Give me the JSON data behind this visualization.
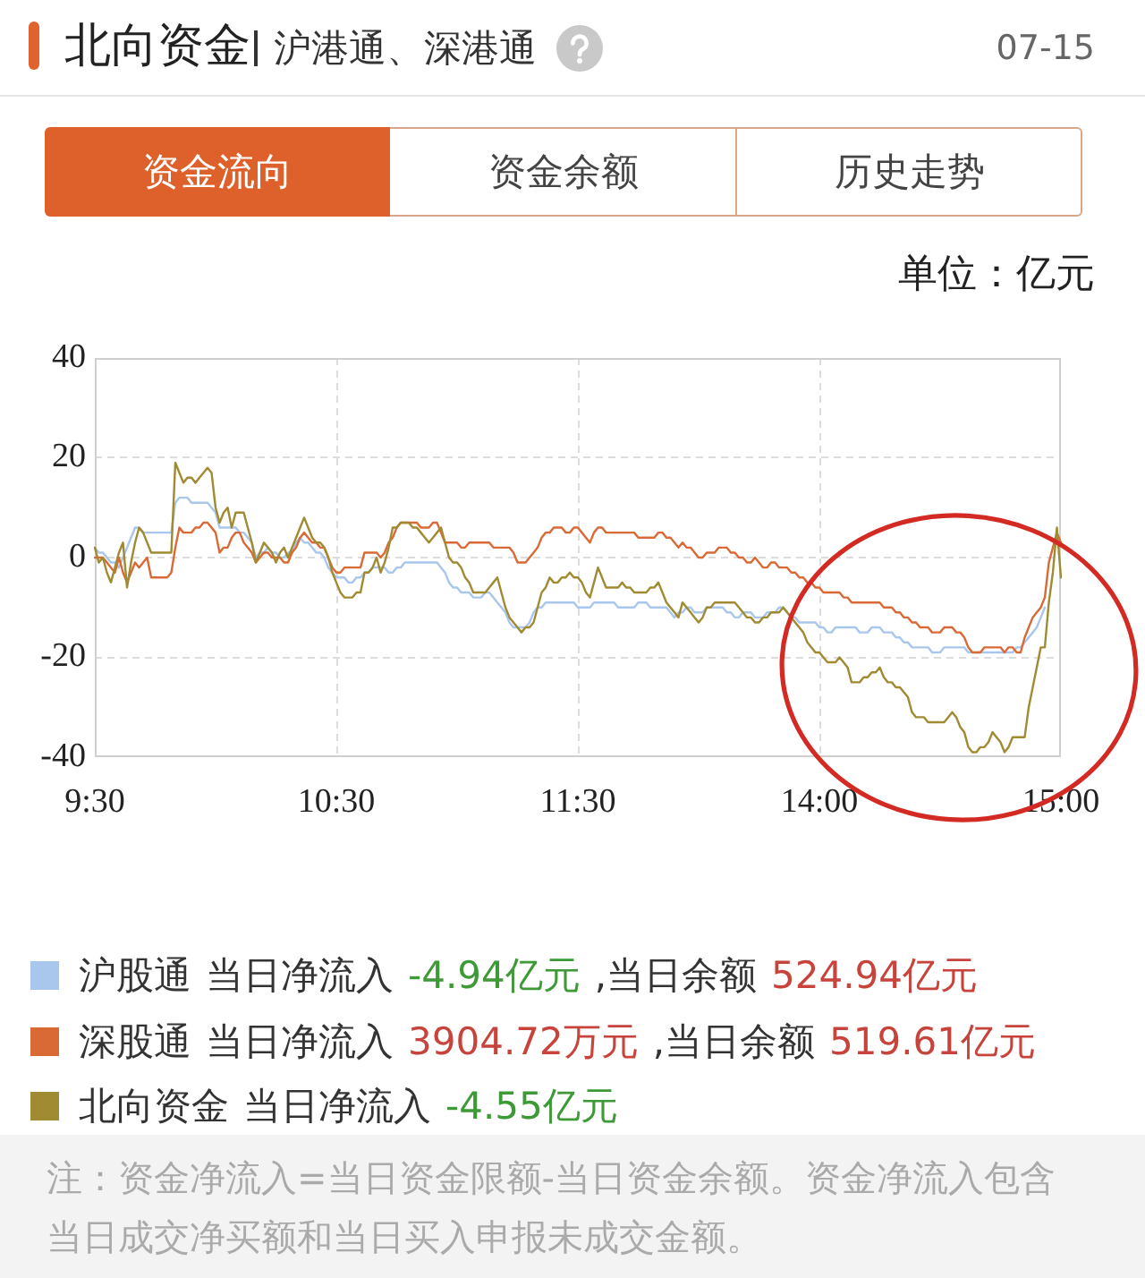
{
  "chart_data": {
    "type": "line",
    "title": "北向资金",
    "subtitle": "沪港通、深港通",
    "ylabel": "单位：亿元",
    "categories": [
      "9:30",
      null,
      null,
      null,
      null,
      null,
      null,
      null,
      null,
      null,
      null,
      null,
      null,
      null,
      null,
      null,
      null,
      null,
      null,
      null,
      null,
      null,
      null,
      null,
      null,
      null,
      null,
      null,
      null,
      null,
      null,
      null,
      null,
      null,
      null,
      null,
      null,
      null,
      null,
      null,
      null,
      null,
      null,
      null,
      null,
      null,
      null,
      null,
      null,
      null,
      null,
      null,
      null,
      null,
      null,
      null,
      null,
      null,
      null,
      null,
      "10:30",
      null,
      null,
      null,
      null,
      null,
      null,
      null,
      null,
      null,
      null,
      null,
      null,
      null,
      null,
      null,
      null,
      null,
      null,
      null,
      null,
      null,
      null,
      null,
      null,
      null,
      null,
      null,
      null,
      null,
      null,
      null,
      null,
      null,
      null,
      null,
      null,
      null,
      null,
      null,
      null,
      null,
      null,
      null,
      null,
      null,
      null,
      null,
      null,
      null,
      null,
      null,
      null,
      null,
      null,
      null,
      null,
      null,
      null,
      null,
      "11:30",
      null,
      null,
      null,
      null,
      null,
      null,
      null,
      null,
      null,
      null,
      null,
      null,
      null,
      null,
      null,
      null,
      null,
      null,
      null,
      null,
      null,
      null,
      null,
      null,
      null,
      null,
      null,
      null,
      null,
      null,
      null,
      null,
      null,
      null,
      null,
      null,
      null,
      null,
      null,
      null,
      null,
      null,
      null,
      null,
      null,
      null,
      null,
      null,
      null,
      null,
      null,
      null,
      null,
      null,
      null,
      null,
      null,
      null,
      null,
      "14:00",
      null,
      null,
      null,
      null,
      null,
      null,
      null,
      null,
      null,
      null,
      null,
      null,
      null,
      null,
      null,
      null,
      null,
      null,
      null,
      null,
      null,
      null,
      null,
      null,
      null,
      null,
      null,
      null,
      null,
      null,
      null,
      null,
      null,
      null,
      null,
      null,
      null,
      null,
      null,
      null,
      null,
      null,
      null,
      null,
      null,
      null,
      null,
      null,
      null,
      null,
      null,
      null,
      null,
      null,
      null,
      null,
      null,
      null,
      null,
      "15:00"
    ],
    "ylim": [
      -40,
      40
    ],
    "yticks": [
      -40,
      -20,
      0,
      20,
      40
    ],
    "grid": true,
    "legend": "bottom",
    "series": [
      {
        "name": "沪股通",
        "color": "#a9c6ec",
        "values": [
          2,
          1,
          1,
          0,
          -1,
          -1,
          -2,
          0,
          2,
          4,
          6,
          6,
          5,
          5,
          5,
          5,
          5,
          5,
          5,
          5,
          11,
          12,
          12,
          12,
          11,
          11,
          11,
          11,
          11,
          10,
          9,
          6,
          6,
          6,
          6,
          6,
          5,
          5,
          4,
          3,
          0,
          1,
          1,
          2,
          1,
          1,
          0,
          0,
          1,
          1,
          3,
          4,
          3,
          3,
          2,
          1,
          1,
          0,
          -2,
          -3,
          -4,
          -4,
          -4,
          -5,
          -5,
          -4,
          -4,
          -3,
          -3,
          -2,
          -2,
          -2,
          -2,
          -3,
          -3,
          -2,
          -2,
          -1,
          -1,
          -1,
          -1,
          -1,
          -1,
          -1,
          -1,
          -1,
          -2,
          -3,
          -5,
          -6,
          -6,
          -7,
          -7,
          -7,
          -8,
          -8,
          -8,
          -7,
          -7,
          -8,
          -9,
          -10,
          -11,
          -13,
          -14,
          -14,
          -14,
          -14,
          -13,
          -11,
          -10,
          -10,
          -9,
          -9,
          -9,
          -9,
          -9,
          -9,
          -9,
          -9,
          -10,
          -10,
          -10,
          -10,
          -9,
          -9,
          -9,
          -9,
          -9,
          -9,
          -10,
          -10,
          -10,
          -10,
          -10,
          -9,
          -9,
          -9,
          -10,
          -10,
          -10,
          -10,
          -10,
          -11,
          -12,
          -11,
          -11,
          -10,
          -10,
          -11,
          -11,
          -11,
          -10,
          -10,
          -10,
          -10,
          -10,
          -11,
          -11,
          -12,
          -12,
          -11,
          -11,
          -11,
          -12,
          -12,
          -12,
          -11,
          -11,
          -11,
          -10,
          -10,
          -11,
          -12,
          -12,
          -13,
          -13,
          -13,
          -13,
          -13,
          -14,
          -14,
          -15,
          -15,
          -14,
          -14,
          -14,
          -14,
          -14,
          -14,
          -15,
          -15,
          -15,
          -14,
          -14,
          -14,
          -15,
          -15,
          -15,
          -16,
          -16,
          -17,
          -17,
          -18,
          -18,
          -18,
          -18,
          -18,
          -19,
          -19,
          -19,
          -18,
          -18,
          -18,
          -18,
          -18,
          -18,
          -19,
          -19,
          -19,
          -19,
          -19,
          -19,
          -19,
          -19,
          -19,
          -19,
          -19,
          -19,
          -18,
          -18,
          -17,
          -16,
          -15,
          -14,
          -12,
          -10,
          null,
          null,
          null,
          null
        ]
      },
      {
        "name": "深股通",
        "color": "#d96a36",
        "values": [
          0,
          0,
          0,
          -1,
          -2,
          -3,
          0,
          -3,
          -5,
          -3,
          -1,
          -2,
          -1,
          0,
          -4,
          -4,
          -4,
          -4,
          -4,
          -3,
          2,
          6,
          5,
          5,
          5,
          6,
          6,
          7,
          7,
          6,
          5,
          1,
          2,
          2,
          4,
          5,
          5,
          3,
          2,
          1,
          -1,
          0,
          1,
          1,
          0,
          0,
          0,
          -1,
          -1,
          1,
          2,
          4,
          5,
          4,
          3,
          3,
          2,
          2,
          0,
          -2,
          -3,
          -3,
          -2,
          -2,
          -2,
          -2,
          -2,
          1,
          1,
          1,
          1,
          0,
          1,
          3,
          4,
          6,
          7,
          7,
          7,
          7,
          7,
          6,
          6,
          6,
          7,
          7,
          5,
          3,
          3,
          3,
          3,
          2,
          2,
          3,
          3,
          3,
          3,
          3,
          3,
          2,
          2,
          2,
          2,
          2,
          1,
          -1,
          -1,
          -1,
          0,
          1,
          2,
          4,
          5,
          5,
          6,
          6,
          6,
          5,
          5,
          6,
          6,
          5,
          4,
          3,
          5,
          6,
          6,
          5,
          5,
          5,
          5,
          5,
          5,
          5,
          5,
          4,
          4,
          4,
          4,
          4,
          5,
          5,
          4,
          4,
          3,
          2,
          3,
          2,
          2,
          1,
          0,
          0,
          1,
          1,
          1,
          2,
          2,
          2,
          1,
          1,
          0,
          0,
          -1,
          -1,
          0,
          -1,
          -2,
          -2,
          -1,
          -1,
          -2,
          -2,
          -2,
          -3,
          -3,
          -4,
          -4,
          -5,
          -5,
          -6,
          -6,
          -7,
          -7,
          -7,
          -7,
          -7,
          -8,
          -8,
          -9,
          -9,
          -9,
          -9,
          -9,
          -9,
          -9,
          -9,
          -10,
          -10,
          -10,
          -11,
          -11,
          -12,
          -12,
          -13,
          -13,
          -14,
          -14,
          -14,
          -15,
          -15,
          -15,
          -14,
          -14,
          -14,
          -15,
          -15,
          -16,
          -18,
          -19,
          -19,
          -19,
          -18,
          -18,
          -18,
          -18,
          -18,
          -19,
          -18,
          -18,
          -19,
          -19,
          -16,
          -14,
          -12,
          -11,
          -10,
          -8,
          -1,
          2,
          5,
          3
        ]
      },
      {
        "name": "北向资金",
        "color": "#a08a32",
        "values": [
          2,
          -1,
          0,
          -3,
          -5,
          -2,
          1,
          3,
          -6,
          -1,
          3,
          6,
          5,
          3,
          1,
          1,
          1,
          1,
          1,
          1,
          19,
          17,
          15,
          16,
          16,
          15,
          16,
          17,
          18,
          17,
          10,
          7,
          9,
          10,
          6,
          9,
          9,
          9,
          6,
          3,
          -1,
          1,
          3,
          2,
          1,
          -1,
          1,
          2,
          0,
          2,
          4,
          6,
          8,
          6,
          4,
          3,
          3,
          2,
          0,
          -3,
          -5,
          -7,
          -8,
          -8,
          -8,
          -7,
          -7,
          -3,
          -3,
          -2,
          0,
          -3,
          -1,
          2,
          6,
          6,
          7,
          7,
          7,
          6,
          6,
          5,
          4,
          3,
          4,
          5,
          6,
          3,
          0,
          -1,
          -1,
          -2,
          -4,
          -5,
          -7,
          -7,
          -7,
          -7,
          -6,
          -5,
          -4,
          -7,
          -10,
          -12,
          -13,
          -14,
          -15,
          -14,
          -14,
          -13,
          -10,
          -7,
          -6,
          -4,
          -5,
          -5,
          -4,
          -4,
          -3,
          -4,
          -4,
          -5,
          -7,
          -8,
          -5,
          -2,
          -4,
          -6,
          -6,
          -6,
          -6,
          -5,
          -6,
          -6,
          -7,
          -7,
          -7,
          -7,
          -6,
          -6,
          -5,
          -7,
          -9,
          -10,
          -11,
          -12,
          -9,
          -10,
          -11,
          -12,
          -13,
          -12,
          -10,
          -10,
          -9,
          -9,
          -9,
          -9,
          -9,
          -9,
          -10,
          -11,
          -12,
          -12,
          -13,
          -13,
          -12,
          -12,
          -11,
          -11,
          -11,
          -10,
          -11,
          -12,
          -13,
          -14,
          -15,
          -17,
          -18,
          -19,
          -19,
          -20,
          -21,
          -21,
          -21,
          -20,
          -21,
          -22,
          -25,
          -25,
          -25,
          -24,
          -24,
          -23,
          -23,
          -22,
          -24,
          -25,
          -25,
          -26,
          -26,
          -27,
          -28,
          -31,
          -32,
          -32,
          -32,
          -33,
          -33,
          -33,
          -33,
          -33,
          -32,
          -31,
          -32,
          -34,
          -35,
          -38,
          -39,
          -39,
          -38,
          -38,
          -37,
          -35,
          -36,
          -37,
          -39,
          -38,
          -36,
          -36,
          -36,
          -36,
          -30,
          -26,
          -22,
          -18,
          -18,
          -9,
          -3,
          6,
          -4
        ]
      }
    ],
    "annotations": [
      "07-15",
      "资金流向",
      "资金余额",
      "历史走势",
      "当日净流入",
      "-4.94亿元",
      ",当日余额",
      "524.94亿元",
      "当日净流入",
      "3904.72万元",
      ",当日余额",
      "519.61亿元",
      "当日净流入",
      "-4.55亿元",
      "注：资金净流入=当日资金限额-当日资金余额。资金净流入包含当日成交净买额和当日买入申报未成交金额。"
    ]
  }
}
